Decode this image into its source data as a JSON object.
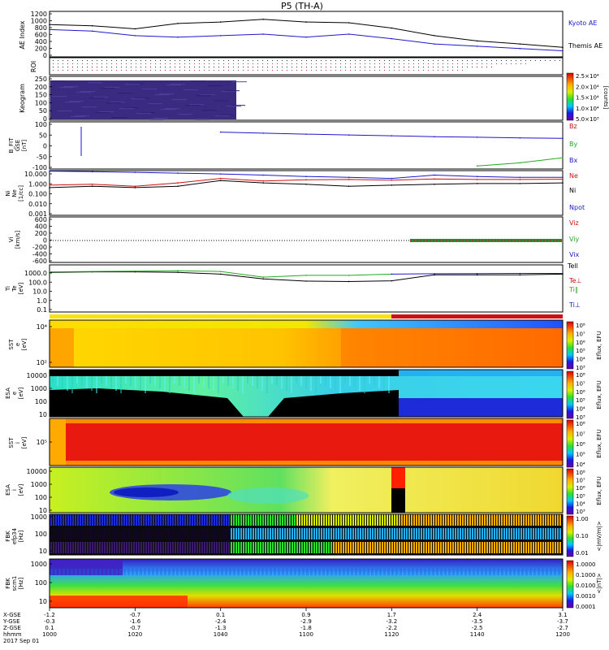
{
  "title": "P5 (TH-A)",
  "colors": {
    "kyoto": "#1a1acc",
    "themis": "#000000",
    "bz": "#cc1111",
    "by": "#22aa22",
    "bx": "#1a1acc",
    "ne": "#cc1111",
    "ni": "#000000",
    "npot": "#1a1acc",
    "tell": "#000000",
    "tepar": "#cc1111",
    "tipar": "#22aa22",
    "tiperp": "#1a1acc"
  },
  "panels": {
    "ae": {
      "ylabel": "AE Index",
      "ticks": [
        "1200",
        "1000",
        "800",
        "600",
        "400",
        "200",
        "0"
      ],
      "legend": [
        "Kyoto AE",
        "Themis AE"
      ]
    },
    "roi": {
      "ylabel": "ROI"
    },
    "keogram": {
      "ylabel": "Keogram",
      "ticks": [
        "250",
        "200",
        "150",
        "100",
        "50",
        "0"
      ],
      "cbar_ticks": [
        "2.5×10⁴",
        "2.0×10⁴",
        "1.5×10⁴",
        "1.0×10⁴",
        "5.0×10³"
      ],
      "cbar_unit": "[counts]"
    },
    "bfield": {
      "ylabel_lines": [
        "B_FIT",
        "GSE",
        "[nT]"
      ],
      "ticks": [
        "100",
        "50",
        "0",
        "-50",
        "-100"
      ],
      "legend": [
        "Bz",
        "By",
        "Bx"
      ]
    },
    "density": {
      "ylabel_lines": [
        "Ni",
        "Ne",
        "[1/cc]"
      ],
      "ticks": [
        "10.000",
        "1.000",
        "0.100",
        "0.010",
        "0.001"
      ],
      "legend": [
        "Ne",
        "Ni",
        "Npot"
      ]
    },
    "velocity": {
      "ylabel_lines": [
        "Vi",
        "[km/s]"
      ],
      "ticks": [
        "600",
        "400",
        "200",
        "0",
        "-200",
        "-400",
        "-600"
      ],
      "legend": [
        "Viz",
        "Viy",
        "Vix"
      ]
    },
    "temp": {
      "ylabel_lines": [
        "Ti",
        "Te",
        "[eV]"
      ],
      "ticks": [
        "1000.0",
        "100.0",
        "10.0",
        "1.0",
        "0.1"
      ],
      "legend": [
        "Tell",
        "Te⊥",
        "Ti∥",
        "Ti⊥"
      ]
    },
    "sst_e": {
      "ylabel_lines": [
        "SST",
        "e",
        "[eV]"
      ],
      "ticks": [
        "10⁴",
        "10²"
      ],
      "cbar_ticks": [
        "10⁸",
        "10⁷",
        "10⁶",
        "10⁵",
        "10⁴",
        "10³"
      ],
      "cbar_unit": "Eflux, EFU"
    },
    "esa_e": {
      "ylabel_lines": [
        "ESA",
        "e",
        "[eV]"
      ],
      "ticks": [
        "10000",
        "1000",
        "100",
        "10"
      ],
      "cbar_ticks": [
        "10⁸",
        "10⁷",
        "10⁶",
        "10⁵",
        "10⁴",
        "10³"
      ],
      "cbar_unit": "Eflux, EFU"
    },
    "sst_i": {
      "ylabel_lines": [
        "SST",
        "i",
        "[eV]"
      ],
      "ticks": [
        "10⁵"
      ],
      "cbar_ticks": [
        "10⁸",
        "10⁷",
        "10⁶",
        "10⁵",
        "10⁴"
      ],
      "cbar_unit": "Eflux, EFU"
    },
    "esa_i": {
      "ylabel_lines": [
        "ESA",
        "i",
        "[eV]"
      ],
      "ticks": [
        "10000",
        "1000",
        "100",
        "10"
      ],
      "cbar_ticks": [
        "10⁸",
        "10⁷",
        "10⁶",
        "10⁵",
        "10⁴",
        "10³"
      ],
      "cbar_unit": "Eflux, EFU"
    },
    "fbk_e": {
      "ylabel_lines": [
        "FBK",
        "efp34",
        "[Hz]"
      ],
      "ticks": [
        "1000",
        "100",
        "10"
      ],
      "cbar_ticks": [
        "1.00",
        "0.10",
        "0.01"
      ],
      "cbar_unit": "<|mV/m|>"
    },
    "fbk_b": {
      "ylabel_lines": [
        "FBK",
        "scm1",
        "[Hz]"
      ],
      "ticks": [
        "1000",
        "100",
        "10"
      ],
      "cbar_ticks": [
        "1.0000",
        "0.1000",
        "0.0100",
        "0.0010",
        "0.0001"
      ],
      "cbar_unit": "<|nT|>"
    }
  },
  "xaxis": {
    "row_labels": [
      "X-GSE",
      "Y-GSE",
      "Z-GSE",
      "hhmm",
      "2017 Sep 01"
    ],
    "columns": [
      {
        "x_gse": "-1.2",
        "y_gse": "-0.3",
        "z_gse": "0.1",
        "hhmm": "1000"
      },
      {
        "x_gse": "-0.7",
        "y_gse": "-1.6",
        "z_gse": "-0.7",
        "hhmm": "1020"
      },
      {
        "x_gse": "0.1",
        "y_gse": "-2.4",
        "z_gse": "-1.3",
        "hhmm": "1040"
      },
      {
        "x_gse": "0.9",
        "y_gse": "-2.9",
        "z_gse": "-1.8",
        "hhmm": "1100"
      },
      {
        "x_gse": "1.7",
        "y_gse": "-3.2",
        "z_gse": "-2.2",
        "hhmm": "1120"
      },
      {
        "x_gse": "2.4",
        "y_gse": "-3.5",
        "z_gse": "-2.5",
        "hhmm": "1140"
      },
      {
        "x_gse": "3.1",
        "y_gse": "-3.7",
        "z_gse": "-2.7",
        "hhmm": "1200"
      }
    ]
  },
  "chart_data": [
    {
      "type": "line",
      "ylabel": "AE Index",
      "x": [
        "1000",
        "1010",
        "1020",
        "1030",
        "1040",
        "1050",
        "1100",
        "1110",
        "1120",
        "1130",
        "1140",
        "1150",
        "1200"
      ],
      "ylim": [
        0,
        1200
      ],
      "series": [
        {
          "name": "Kyoto AE",
          "values": [
            720,
            680,
            560,
            520,
            560,
            600,
            520,
            600,
            480,
            340,
            280,
            220,
            160
          ]
        },
        {
          "name": "Themis AE",
          "values": [
            850,
            820,
            740,
            880,
            920,
            990,
            920,
            900,
            760,
            560,
            420,
            340,
            250
          ]
        }
      ]
    },
    {
      "type": "line",
      "ylabel": "B_FIT GSE [nT]",
      "x": [
        "1040",
        "1050",
        "1100",
        "1110",
        "1120",
        "1130",
        "1140",
        "1150",
        "1200"
      ],
      "ylim": [
        -130,
        100
      ],
      "series": [
        {
          "name": "Bx",
          "values": [
            50,
            45,
            40,
            36,
            32,
            28,
            25,
            22,
            20
          ]
        },
        {
          "name": "By",
          "values": [
            null,
            null,
            null,
            null,
            null,
            null,
            -115,
            -100,
            -75
          ]
        }
      ]
    },
    {
      "type": "line",
      "ylabel": "Ne Ni [1/cc]",
      "x": [
        "1000",
        "1010",
        "1020",
        "1030",
        "1040",
        "1050",
        "1100",
        "1110",
        "1120",
        "1130",
        "1140",
        "1150",
        "1200"
      ],
      "ylim": [
        0.001,
        10
      ],
      "scale": "log",
      "series": [
        {
          "name": "Ne",
          "values": [
            0.5,
            0.6,
            0.4,
            0.8,
            2.0,
            1.2,
            1.5,
            1.6,
            1.4,
            1.8,
            1.6,
            1.6,
            1.7
          ]
        },
        {
          "name": "Ni",
          "values": [
            0.3,
            0.4,
            0.3,
            0.4,
            1.3,
            0.8,
            0.6,
            0.4,
            0.5,
            0.6,
            0.7,
            0.7,
            0.8
          ]
        },
        {
          "name": "Npot",
          "values": [
            9,
            8,
            7,
            6,
            5,
            4,
            3,
            2.5,
            2,
            4,
            3,
            2.5,
            2.5
          ]
        }
      ]
    },
    {
      "type": "line",
      "ylabel": "Ti Te [eV]",
      "x": [
        "1000",
        "1010",
        "1020",
        "1030",
        "1040",
        "1050",
        "1100",
        "1110",
        "1120",
        "1130",
        "1140",
        "1150",
        "1200"
      ],
      "ylim": [
        0.1,
        5000
      ],
      "scale": "log",
      "series": [
        {
          "name": "Tell",
          "values": [
            900,
            1000,
            1000,
            900,
            600,
            200,
            120,
            110,
            130,
            500,
            500,
            500,
            600
          ]
        },
        {
          "name": "Ti∥",
          "values": [
            1000,
            1100,
            1200,
            1300,
            1100,
            300,
            450,
            450,
            600,
            null,
            null,
            null,
            null
          ]
        },
        {
          "name": "Ti⊥",
          "values": [
            null,
            null,
            null,
            null,
            null,
            null,
            null,
            null,
            600,
            650,
            680,
            700,
            700
          ]
        }
      ]
    }
  ]
}
